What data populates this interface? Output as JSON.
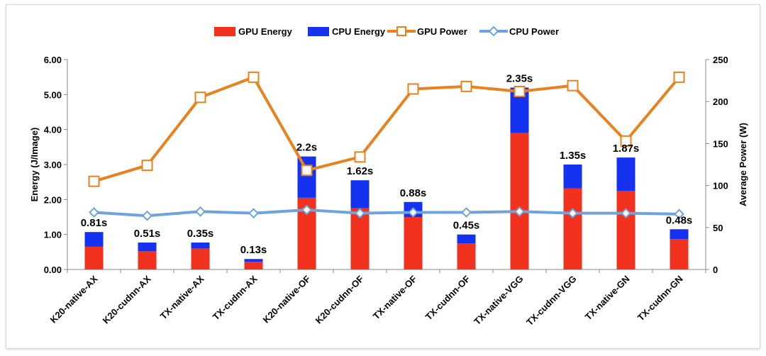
{
  "chart_data": {
    "type": "bar+line",
    "categories": [
      "K20-native-AX",
      "K20-cudnn-AX",
      "TX-native-AX",
      "TX-cudnn-AX",
      "K20-native-OF",
      "K20-cudnn-OF",
      "TX-native-OF",
      "TX-cudnn-OF",
      "TX-native-VGG",
      "TX-cudnn-VGG",
      "TX-native-GN",
      "TX-cudnn-GN"
    ],
    "stacked_bars": [
      {
        "name": "GPU Energy",
        "color": "#f0321e",
        "values": [
          0.65,
          0.52,
          0.6,
          0.22,
          2.05,
          1.75,
          1.5,
          0.75,
          3.9,
          2.32,
          2.25,
          0.87
        ]
      },
      {
        "name": "CPU Energy",
        "color": "#1432f0",
        "values": [
          0.42,
          0.25,
          0.17,
          0.08,
          1.18,
          0.8,
          0.43,
          0.25,
          1.3,
          0.68,
          0.95,
          0.28
        ]
      }
    ],
    "lines": [
      {
        "name": "GPU Power",
        "color": "#e8821e",
        "marker": "square",
        "values": [
          105,
          124,
          205,
          229,
          118,
          134,
          215,
          218,
          212,
          219,
          153,
          229
        ]
      },
      {
        "name": "CPU Power",
        "color": "#6fa3dc",
        "marker": "diamond",
        "values": [
          68,
          64,
          69,
          67,
          71,
          67,
          68,
          68,
          69,
          67,
          67,
          66
        ]
      }
    ],
    "bar_labels": [
      "0.81s",
      "0.51s",
      "0.35s",
      "0.13s",
      "2.2s",
      "1.62s",
      "0.88s",
      "0.45s",
      "2.35s",
      "1.35s",
      "1.87s",
      "0.48s"
    ],
    "y_left": {
      "label": "Energy (J/Image)",
      "min": 0,
      "max": 6,
      "ticks": [
        "0.00",
        "1.00",
        "2.00",
        "3.00",
        "4.00",
        "5.00",
        "6.00"
      ]
    },
    "y_right": {
      "label": "Average Power (W)",
      "min": 0,
      "max": 250,
      "ticks": [
        "0",
        "50",
        "100",
        "150",
        "200",
        "250"
      ]
    },
    "legend_position": "top"
  }
}
